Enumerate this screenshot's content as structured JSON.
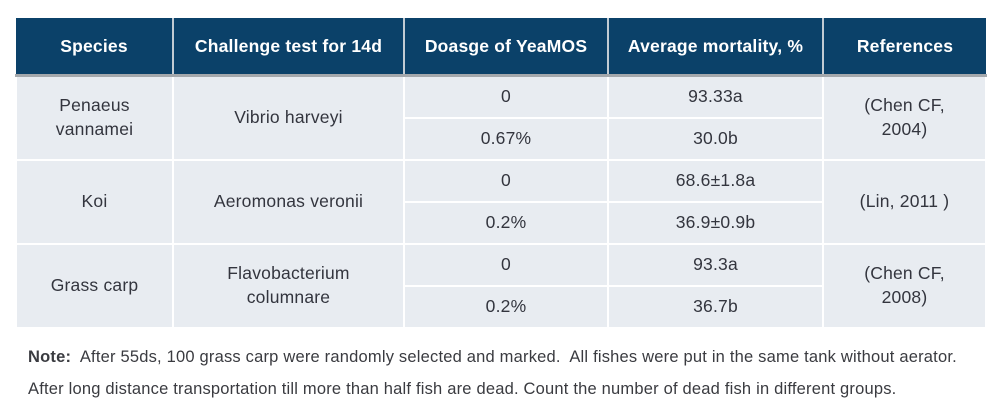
{
  "table": {
    "headers": [
      "Species",
      "Challenge test for 14d",
      "Doasge of YeaMOS",
      "Average mortality, %",
      "References"
    ],
    "rows": [
      {
        "species": "Penaeus vannamei",
        "challenge": "Vibrio harveyi",
        "entries": [
          {
            "dosage": "0",
            "mortality": "93.33a"
          },
          {
            "dosage": "0.67%",
            "mortality": "30.0b"
          }
        ],
        "reference": "(Chen CF, 2004)"
      },
      {
        "species": "Koi",
        "challenge": "Aeromonas veronii",
        "entries": [
          {
            "dosage": "0",
            "mortality": "68.6±1.8a"
          },
          {
            "dosage": "0.2%",
            "mortality": "36.9±0.9b"
          }
        ],
        "reference": "(Lin, 2011 )"
      },
      {
        "species": "Grass carp",
        "challenge": "Flavobacterium columnare",
        "entries": [
          {
            "dosage": "0",
            "mortality": "93.3a"
          },
          {
            "dosage": "0.2%",
            "mortality": "36.7b"
          }
        ],
        "reference": "(Chen CF, 2008)"
      }
    ]
  },
  "note": {
    "label": "Note:",
    "line1_rest": "  After 55ds, 100 grass carp were randomly selected and marked.  All fishes were put in the same tank without aerator.",
    "line2": "After long distance transportation till more than half fish are dead. Count the number of dead fish in different groups."
  },
  "colors": {
    "header_bg": "#0b4169",
    "row_bg": "#e8ecf1",
    "header_text": "#ffffff",
    "body_text": "#33353e"
  }
}
